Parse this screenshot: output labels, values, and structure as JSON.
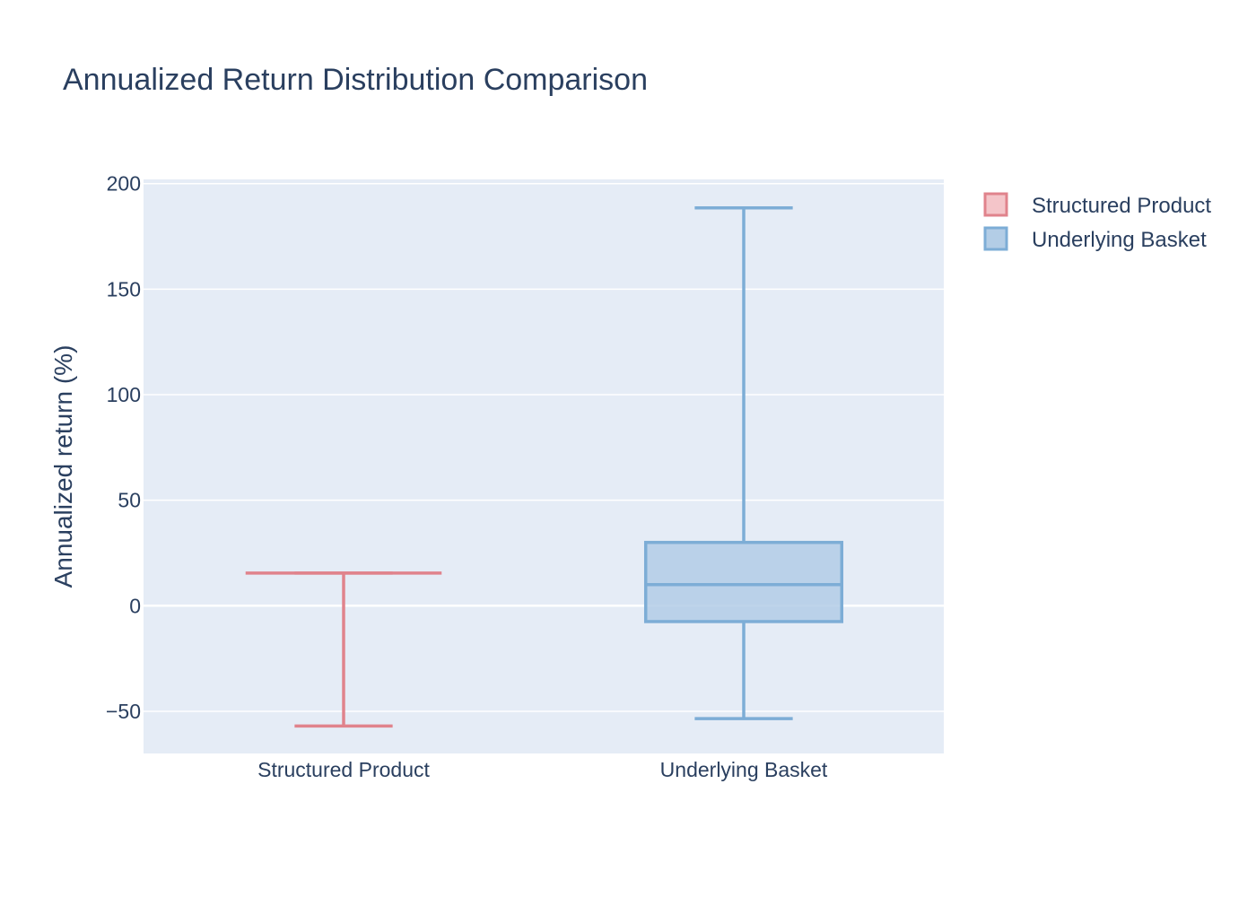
{
  "chart_data": {
    "type": "box",
    "title": "Annualized Return Distribution Comparison",
    "xlabel": "",
    "ylabel": "Annualized return (%)",
    "categories": [
      "Structured Product",
      "Underlying Basket"
    ],
    "ylim": [
      -70,
      202
    ],
    "yticks": [
      -50,
      0,
      50,
      100,
      150,
      200
    ],
    "ytick_labels": [
      "−50",
      "0",
      "50",
      "100",
      "150",
      "200"
    ],
    "grid": true,
    "legend_position": "top-right",
    "series": [
      {
        "name": "Structured Product",
        "category": "Structured Product",
        "min": -57,
        "q1": 15.5,
        "median": 15.5,
        "q3": 15.5,
        "max": 15.5,
        "line_color": "#e0838c",
        "fill_color": "#f4c5c9"
      },
      {
        "name": "Underlying Basket",
        "category": "Underlying Basket",
        "min": -53.5,
        "q1": -7.5,
        "median": 10,
        "q3": 30,
        "max": 188.5,
        "line_color": "#7dadd6",
        "fill_color": "#b3cde6"
      }
    ],
    "colors": {
      "plot_background": "#e5ecf6",
      "grid": "#ffffff",
      "text": "#2a3f5f"
    }
  }
}
